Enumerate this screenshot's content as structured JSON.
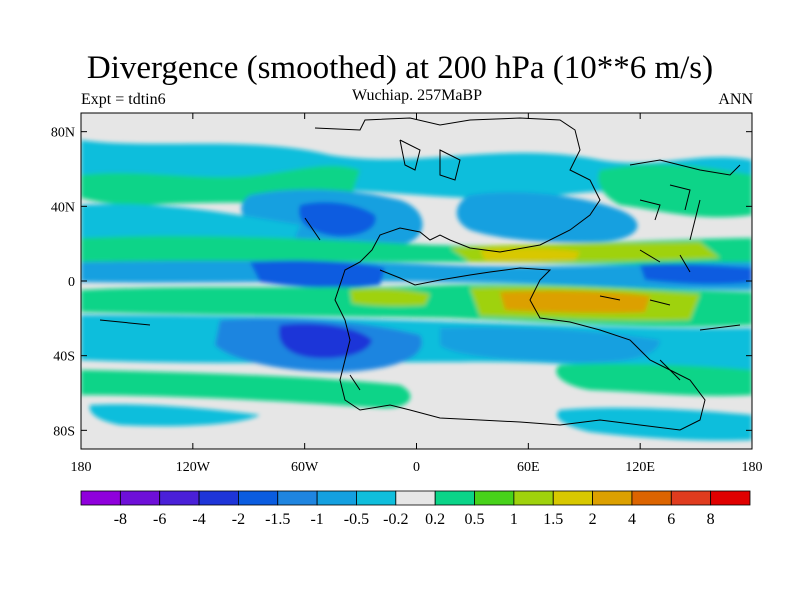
{
  "title": "Divergence (smoothed) at 200 hPa (10**6 m/s)",
  "subtitle": "Wuchiap. 257MaBP",
  "left_label": "Expt = tdtin6",
  "right_label": "ANN",
  "map": {
    "projection": "cylindrical-equidistant",
    "lon_range": [
      -180,
      180
    ],
    "lat_range": [
      -90,
      90
    ],
    "x_ticks": [
      {
        "value": -180,
        "label": "180"
      },
      {
        "value": -120,
        "label": "120W"
      },
      {
        "value": -60,
        "label": "60W"
      },
      {
        "value": 0,
        "label": "0"
      },
      {
        "value": 60,
        "label": "60E"
      },
      {
        "value": 120,
        "label": "120E"
      },
      {
        "value": 180,
        "label": "180"
      }
    ],
    "y_ticks": [
      {
        "value": 80,
        "label": "80N"
      },
      {
        "value": 40,
        "label": "40N"
      },
      {
        "value": 0,
        "label": "0"
      },
      {
        "value": -40,
        "label": "40S"
      },
      {
        "value": -80,
        "label": "80S"
      }
    ],
    "background_color": "#e6e6e6"
  },
  "colorbar": {
    "labels": [
      "-8",
      "-6",
      "-4",
      "-2",
      "-1.5",
      "-1",
      "-0.5",
      "-0.2",
      "0.2",
      "0.5",
      "1",
      "1.5",
      "2",
      "4",
      "6",
      "8"
    ],
    "colors": [
      "#8f00dc",
      "#6e0fd8",
      "#4a20d8",
      "#1e35d8",
      "#0a5ce0",
      "#1f85e0",
      "#14a0e0",
      "#0fbedc",
      "#e6e6e6",
      "#0ad488",
      "#47d21a",
      "#9fd20c",
      "#d8c800",
      "#dca000",
      "#dc6400",
      "#e03c1e",
      "#e00000"
    ]
  },
  "field_colors": {
    "dark_blue": "#1e35d8",
    "blue": "#0a5ce0",
    "mid_blue": "#1f85e0",
    "light_blue": "#14a0e0",
    "cyan": "#0fbedc",
    "green": "#0ad488",
    "lime": "#9fd20c",
    "yellow": "#d8c800",
    "orange": "#dca000"
  }
}
